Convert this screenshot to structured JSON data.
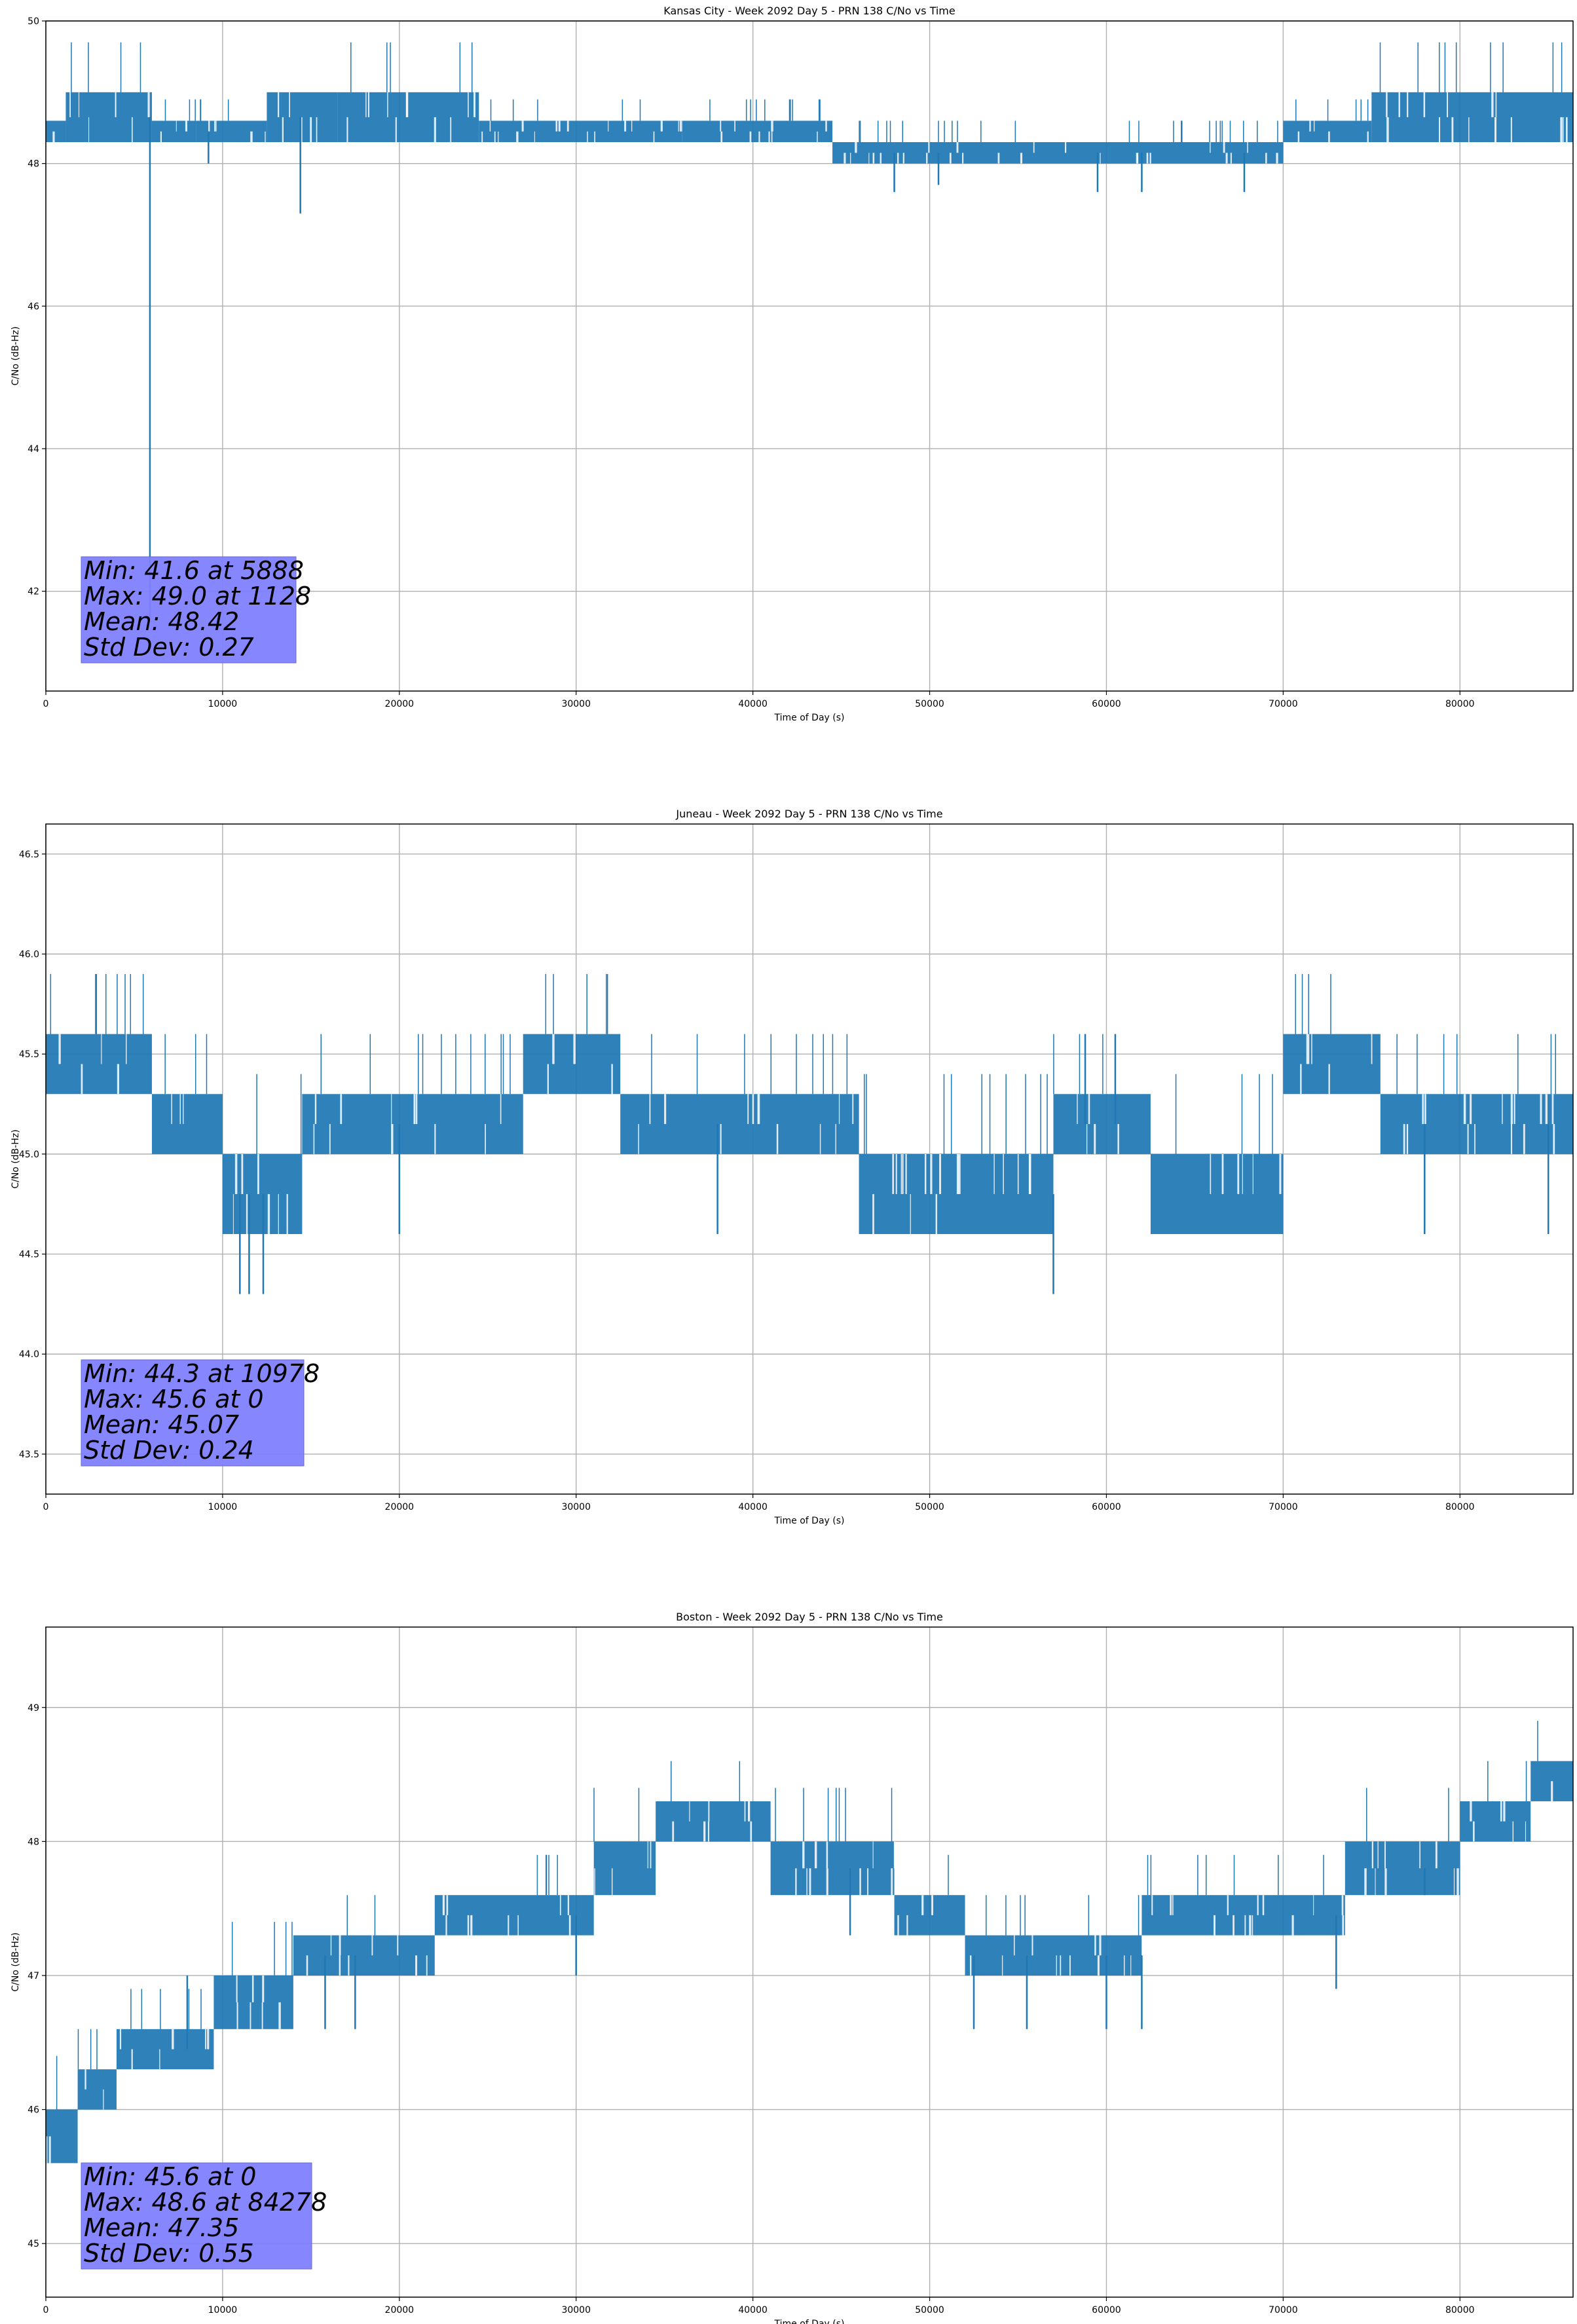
{
  "chart_data": [
    {
      "type": "line",
      "title": "Kansas City - Week 2092 Day 5 - PRN 138 C/No vs Time",
      "xlabel": "Time of Day (s)",
      "ylabel": "C/No (dB-Hz)",
      "xlim": [
        0,
        86400
      ],
      "ylim": [
        40.6,
        50
      ],
      "xticks": [
        0,
        10000,
        20000,
        30000,
        40000,
        50000,
        60000,
        70000,
        80000
      ],
      "yticks": [
        42,
        44,
        46,
        48,
        50
      ],
      "grid": true,
      "series_color": "#1f77b4",
      "stats_box_color": "#8080ff",
      "stats_lines": [
        "Min: 41.6 at 5888",
        "Max: 49.0 at 1128",
        "Mean: 48.42",
        "Std Dev: 0.27"
      ],
      "bands": [
        {
          "x0": 0,
          "x1": 1128,
          "lo": 48.3,
          "hi": 48.6
        },
        {
          "x0": 1128,
          "x1": 6000,
          "lo": 48.3,
          "hi": 49.0
        },
        {
          "x0": 6000,
          "x1": 8500,
          "lo": 48.3,
          "hi": 48.6
        },
        {
          "x0": 8500,
          "x1": 12500,
          "lo": 48.3,
          "hi": 48.6
        },
        {
          "x0": 12500,
          "x1": 16500,
          "lo": 48.3,
          "hi": 49.0
        },
        {
          "x0": 16500,
          "x1": 24500,
          "lo": 48.3,
          "hi": 49.0
        },
        {
          "x0": 24500,
          "x1": 36000,
          "lo": 48.3,
          "hi": 48.6
        },
        {
          "x0": 36000,
          "x1": 44500,
          "lo": 48.3,
          "hi": 48.6
        },
        {
          "x0": 44500,
          "x1": 70000,
          "lo": 48.0,
          "hi": 48.3
        },
        {
          "x0": 70000,
          "x1": 75000,
          "lo": 48.3,
          "hi": 48.6
        },
        {
          "x0": 75000,
          "x1": 86400,
          "lo": 48.3,
          "hi": 49.0
        }
      ],
      "spikes": [
        {
          "x": 5888,
          "y": 41.6
        },
        {
          "x": 9200,
          "y": 48.0
        },
        {
          "x": 14400,
          "y": 47.3
        },
        {
          "x": 48000,
          "y": 47.6
        },
        {
          "x": 50500,
          "y": 47.7
        },
        {
          "x": 59500,
          "y": 47.6
        },
        {
          "x": 62000,
          "y": 47.6
        },
        {
          "x": 67800,
          "y": 47.6
        }
      ]
    },
    {
      "type": "line",
      "title": "Juneau - Week 2092 Day 5 - PRN 138 C/No vs Time",
      "xlabel": "Time of Day (s)",
      "ylabel": "C/No (dB-Hz)",
      "xlim": [
        0,
        86400
      ],
      "ylim": [
        43.3,
        46.65
      ],
      "xticks": [
        0,
        10000,
        20000,
        30000,
        40000,
        50000,
        60000,
        70000,
        80000
      ],
      "yticks": [
        43.5,
        44.0,
        44.5,
        45.0,
        45.5,
        46.0,
        46.5
      ],
      "grid": true,
      "series_color": "#1f77b4",
      "stats_box_color": "#8080ff",
      "stats_lines": [
        "Min: 44.3 at 10978",
        "Max: 45.6 at 0",
        "Mean: 45.07",
        "Std Dev: 0.24"
      ],
      "bands": [
        {
          "x0": 0,
          "x1": 6000,
          "lo": 45.3,
          "hi": 45.6
        },
        {
          "x0": 6000,
          "x1": 10000,
          "lo": 45.0,
          "hi": 45.3
        },
        {
          "x0": 10000,
          "x1": 14500,
          "lo": 44.6,
          "hi": 45.0
        },
        {
          "x0": 14500,
          "x1": 27000,
          "lo": 45.0,
          "hi": 45.3
        },
        {
          "x0": 27000,
          "x1": 32500,
          "lo": 45.3,
          "hi": 45.6
        },
        {
          "x0": 32500,
          "x1": 46000,
          "lo": 45.0,
          "hi": 45.3
        },
        {
          "x0": 46000,
          "x1": 57000,
          "lo": 44.6,
          "hi": 45.0
        },
        {
          "x0": 57000,
          "x1": 62500,
          "lo": 45.0,
          "hi": 45.3
        },
        {
          "x0": 62500,
          "x1": 70000,
          "lo": 44.6,
          "hi": 45.0
        },
        {
          "x0": 70000,
          "x1": 75500,
          "lo": 45.3,
          "hi": 45.6
        },
        {
          "x0": 75500,
          "x1": 86400,
          "lo": 45.0,
          "hi": 45.3
        }
      ],
      "spikes": [
        {
          "x": 10978,
          "y": 44.3
        },
        {
          "x": 11500,
          "y": 44.3
        },
        {
          "x": 12300,
          "y": 44.3
        },
        {
          "x": 57000,
          "y": 44.3
        },
        {
          "x": 58800,
          "y": 45.6
        },
        {
          "x": 60500,
          "y": 45.6
        },
        {
          "x": 20000,
          "y": 44.6
        },
        {
          "x": 38000,
          "y": 44.6
        },
        {
          "x": 78000,
          "y": 44.6
        },
        {
          "x": 85000,
          "y": 44.6
        }
      ]
    },
    {
      "type": "line",
      "title": "Boston - Week 2092 Day 5 - PRN 138 C/No vs Time",
      "xlabel": "Time of Day (s)",
      "ylabel": "C/No (dB-Hz)",
      "xlim": [
        0,
        86400
      ],
      "ylim": [
        44.6,
        49.6
      ],
      "xticks": [
        0,
        10000,
        20000,
        30000,
        40000,
        50000,
        60000,
        70000,
        80000
      ],
      "yticks": [
        45,
        46,
        47,
        48,
        49
      ],
      "grid": true,
      "series_color": "#1f77b4",
      "stats_box_color": "#8080ff",
      "stats_lines": [
        "Min: 45.6 at 0",
        "Max: 48.6 at 84278",
        "Mean: 47.35",
        "Std Dev: 0.55"
      ],
      "bands": [
        {
          "x0": 0,
          "x1": 1800,
          "lo": 45.6,
          "hi": 46.0
        },
        {
          "x0": 1800,
          "x1": 4000,
          "lo": 46.0,
          "hi": 46.3
        },
        {
          "x0": 4000,
          "x1": 9500,
          "lo": 46.3,
          "hi": 46.6
        },
        {
          "x0": 9500,
          "x1": 14000,
          "lo": 46.6,
          "hi": 47.0
        },
        {
          "x0": 14000,
          "x1": 22000,
          "lo": 47.0,
          "hi": 47.3
        },
        {
          "x0": 22000,
          "x1": 31000,
          "lo": 47.3,
          "hi": 47.6
        },
        {
          "x0": 31000,
          "x1": 34500,
          "lo": 47.6,
          "hi": 48.0
        },
        {
          "x0": 34500,
          "x1": 41000,
          "lo": 48.0,
          "hi": 48.3
        },
        {
          "x0": 41000,
          "x1": 48000,
          "lo": 47.6,
          "hi": 48.0
        },
        {
          "x0": 48000,
          "x1": 52000,
          "lo": 47.3,
          "hi": 47.6
        },
        {
          "x0": 52000,
          "x1": 62000,
          "lo": 47.0,
          "hi": 47.3
        },
        {
          "x0": 62000,
          "x1": 73500,
          "lo": 47.3,
          "hi": 47.6
        },
        {
          "x0": 73500,
          "x1": 80000,
          "lo": 47.6,
          "hi": 48.0
        },
        {
          "x0": 80000,
          "x1": 84000,
          "lo": 48.0,
          "hi": 48.3
        },
        {
          "x0": 84000,
          "x1": 86400,
          "lo": 48.3,
          "hi": 48.6
        }
      ],
      "spikes": [
        {
          "x": 8000,
          "y": 47.0
        },
        {
          "x": 15800,
          "y": 46.6
        },
        {
          "x": 17500,
          "y": 46.6
        },
        {
          "x": 30000,
          "y": 47.0
        },
        {
          "x": 45500,
          "y": 47.3
        },
        {
          "x": 52500,
          "y": 46.6
        },
        {
          "x": 55500,
          "y": 46.6
        },
        {
          "x": 60000,
          "y": 46.6
        },
        {
          "x": 62000,
          "y": 46.6
        },
        {
          "x": 73000,
          "y": 46.9
        },
        {
          "x": 78000,
          "y": 47.6
        }
      ]
    }
  ]
}
